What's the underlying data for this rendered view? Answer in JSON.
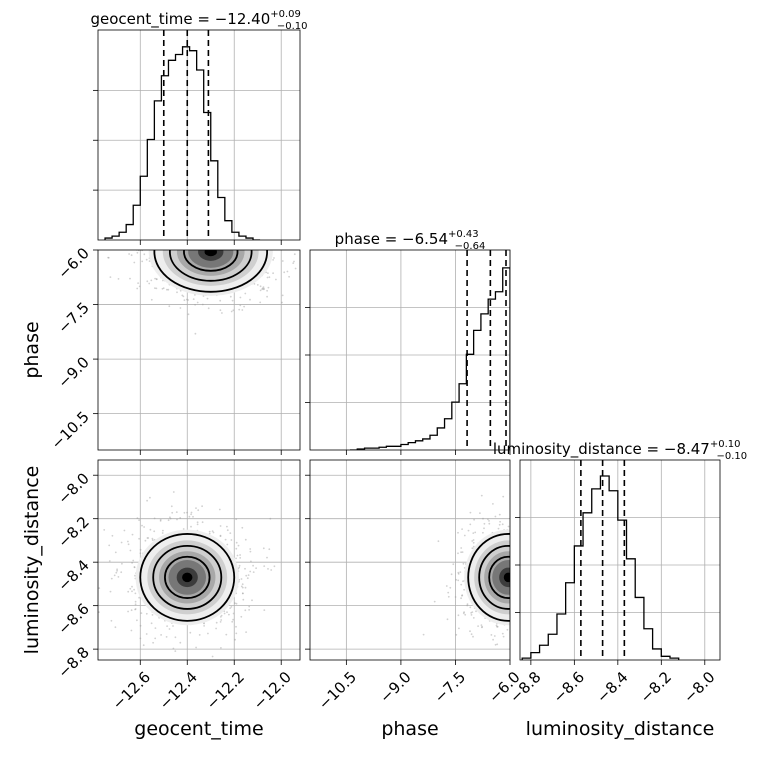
{
  "chart_data": {
    "type": "corner",
    "parameters": [
      "geocent_time",
      "phase",
      "luminosity_distance"
    ],
    "titles": [
      {
        "param": "geocent_time",
        "text": "geocent_time = −12.40",
        "plus": "+0.09",
        "minus": "−0.10",
        "median": -12.4
      },
      {
        "param": "phase",
        "text": "phase = −6.54",
        "plus": "+0.43",
        "minus": "−0.64",
        "median": -6.54
      },
      {
        "param": "luminosity_distance",
        "text": "luminosity_distance = −8.47",
        "plus": "+0.10",
        "minus": "−0.10",
        "median": -8.47
      }
    ],
    "axes": {
      "geocent_time": {
        "range": [
          -12.78,
          -11.92
        ],
        "ticks": [
          -12.6,
          -12.4,
          -12.2,
          -12.0
        ],
        "tick_labels": [
          "−12.6",
          "−12.4",
          "−12.2",
          "−12.0"
        ],
        "label": "geocent_time"
      },
      "phase": {
        "range": [
          -11.5,
          -6.0
        ],
        "ticks": [
          -10.5,
          -9.0,
          -7.5,
          -6.0
        ],
        "tick_labels": [
          "−10.5",
          "−9.0",
          "−7.5",
          "−6.0"
        ],
        "label": "phase"
      },
      "luminosity_distance": {
        "range": [
          -8.85,
          -7.93
        ],
        "ticks": [
          -8.8,
          -8.6,
          -8.4,
          -8.2,
          -8.0
        ],
        "tick_labels": [
          "−8.8",
          "−8.6",
          "−8.4",
          "−8.2",
          "−8.0"
        ],
        "label": "luminosity_distance"
      }
    },
    "histograms": {
      "geocent_time": {
        "edges": [
          -12.75,
          -12.72,
          -12.69,
          -12.66,
          -12.63,
          -12.6,
          -12.57,
          -12.54,
          -12.51,
          -12.48,
          -12.45,
          -12.42,
          -12.39,
          -12.36,
          -12.33,
          -12.3,
          -12.27,
          -12.24,
          -12.21,
          -12.18,
          -12.15,
          -12.12,
          -12.09
        ],
        "counts": [
          0.01,
          0.02,
          0.04,
          0.08,
          0.18,
          0.33,
          0.52,
          0.72,
          0.85,
          0.93,
          0.96,
          1.0,
          0.98,
          0.88,
          0.66,
          0.41,
          0.22,
          0.1,
          0.04,
          0.02,
          0.01,
          0.0
        ],
        "quantiles": [
          -12.5,
          -12.4,
          -12.31
        ]
      },
      "phase": {
        "edges": [
          -10.4,
          -10.2,
          -10.0,
          -9.8,
          -9.6,
          -9.4,
          -9.2,
          -9.0,
          -8.8,
          -8.6,
          -8.4,
          -8.2,
          -8.0,
          -7.8,
          -7.6,
          -7.4,
          -7.2,
          -7.0,
          -6.8,
          -6.6,
          -6.4,
          -6.2,
          -6.0
        ],
        "counts": [
          0.0,
          0.005,
          0.01,
          0.01,
          0.015,
          0.02,
          0.02,
          0.03,
          0.04,
          0.05,
          0.06,
          0.08,
          0.12,
          0.17,
          0.26,
          0.36,
          0.52,
          0.65,
          0.74,
          0.82,
          0.86,
          0.99
        ],
        "quantiles": [
          -7.18,
          -6.54,
          -6.11
        ]
      },
      "luminosity_distance": {
        "edges": [
          -8.84,
          -8.8,
          -8.76,
          -8.72,
          -8.68,
          -8.64,
          -8.6,
          -8.56,
          -8.52,
          -8.48,
          -8.44,
          -8.4,
          -8.36,
          -8.32,
          -8.28,
          -8.24,
          -8.2,
          -8.16,
          -8.12
        ],
        "counts": [
          0.01,
          0.04,
          0.08,
          0.14,
          0.25,
          0.42,
          0.62,
          0.8,
          0.93,
          1.0,
          0.92,
          0.76,
          0.55,
          0.34,
          0.17,
          0.06,
          0.02,
          0.01
        ],
        "quantiles": [
          -8.57,
          -8.47,
          -8.37
        ]
      }
    },
    "pairs": [
      {
        "x": "geocent_time",
        "y": "phase",
        "center": [
          -12.3,
          -6.05
        ],
        "spread": [
          0.12,
          0.55
        ]
      },
      {
        "x": "geocent_time",
        "y": "luminosity_distance",
        "center": [
          -12.4,
          -8.47
        ],
        "spread": [
          0.1,
          0.1
        ]
      },
      {
        "x": "phase",
        "y": "luminosity_distance",
        "center": [
          -6.05,
          -8.47
        ],
        "spread": [
          0.55,
          0.1
        ]
      }
    ]
  }
}
